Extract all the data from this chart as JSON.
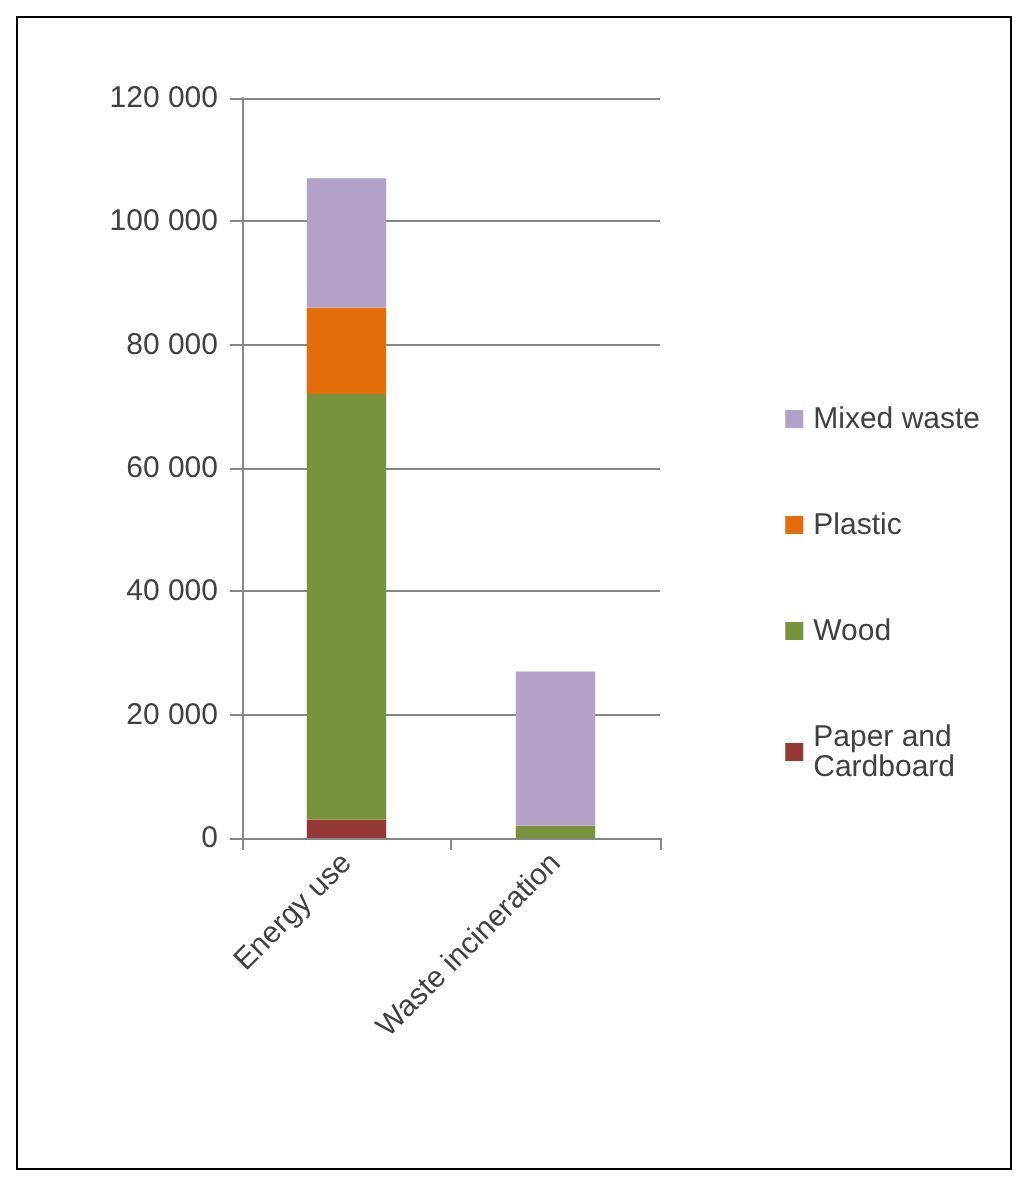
{
  "chart_data": {
    "type": "bar",
    "stacked": true,
    "categories": [
      "Energy use",
      "Waste incineration"
    ],
    "series": [
      {
        "name": "Paper and Cardboard",
        "color": "#953735",
        "values": [
          3000,
          0
        ]
      },
      {
        "name": "Wood",
        "color": "#77933c",
        "values": [
          69000,
          2000
        ]
      },
      {
        "name": "Plastic",
        "color": "#e46c0a",
        "values": [
          14000,
          0
        ]
      },
      {
        "name": "Mixed waste",
        "color": "#b3a2c7",
        "values": [
          21000,
          25000
        ]
      }
    ],
    "ylim": [
      0,
      120000
    ],
    "yticks": [
      {
        "value": 0,
        "label": "0"
      },
      {
        "value": 20000,
        "label": "20 000"
      },
      {
        "value": 40000,
        "label": "40 000"
      },
      {
        "value": 60000,
        "label": "60 000"
      },
      {
        "value": 80000,
        "label": "80 000"
      },
      {
        "value": 100000,
        "label": "100 000"
      },
      {
        "value": 120000,
        "label": "120 000"
      }
    ],
    "grid": "y",
    "legend": "right"
  }
}
